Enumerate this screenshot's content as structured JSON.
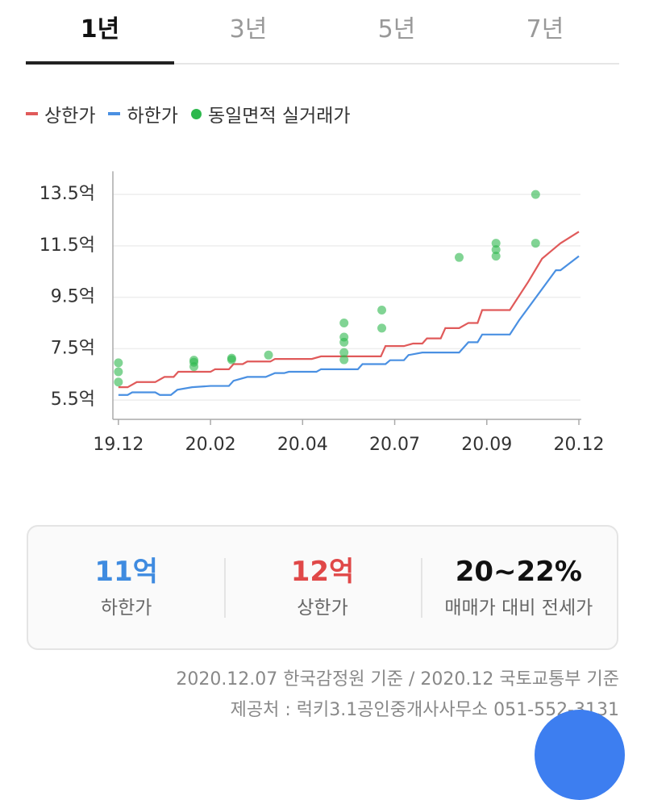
{
  "tabs": {
    "items": [
      "1년",
      "3년",
      "5년",
      "7년"
    ],
    "active": 0
  },
  "chart_data": {
    "type": "line",
    "ylim": [
      4.75,
      14.4
    ],
    "yticks": [
      {
        "value": 5.5,
        "label": "5.5억"
      },
      {
        "value": 7.5,
        "label": "7.5억"
      },
      {
        "value": 9.5,
        "label": "9.5억"
      },
      {
        "value": 11.5,
        "label": "11.5억"
      },
      {
        "value": 13.5,
        "label": "13.5억"
      }
    ],
    "xlim": [
      -0.6,
      50
    ],
    "xticks": [
      {
        "value": 0,
        "label": "19.12"
      },
      {
        "value": 10,
        "label": "20.02"
      },
      {
        "value": 20,
        "label": "20.04"
      },
      {
        "value": 30,
        "label": "20.07"
      },
      {
        "value": 40,
        "label": "20.09"
      },
      {
        "value": 50,
        "label": "20.12"
      }
    ],
    "grid": true,
    "series": [
      {
        "name": "상한가",
        "color": "#e05a5a",
        "x": [
          0,
          1,
          2,
          4,
          5,
          6,
          6.5,
          10,
          10.5,
          12,
          12.5,
          13.5,
          14,
          16.5,
          17,
          21,
          22,
          28.5,
          29,
          31,
          32,
          33,
          33.5,
          35,
          35.5,
          37,
          38,
          39,
          39.5,
          42.5,
          44.5,
          46,
          47,
          48,
          50
        ],
        "values": [
          6.0,
          6.0,
          6.2,
          6.2,
          6.4,
          6.4,
          6.6,
          6.6,
          6.7,
          6.7,
          6.9,
          6.9,
          7.0,
          7.0,
          7.1,
          7.1,
          7.2,
          7.2,
          7.6,
          7.6,
          7.7,
          7.7,
          7.9,
          7.9,
          8.3,
          8.3,
          8.5,
          8.5,
          9.0,
          9.0,
          10.1,
          11.0,
          11.3,
          11.6,
          12.05
        ]
      },
      {
        "name": "하한가",
        "color": "#4a90e2",
        "x": [
          0,
          1,
          1.5,
          4,
          4.5,
          5.7,
          6.4,
          8,
          10,
          12,
          12.5,
          14,
          16,
          17,
          18,
          18.5,
          21.5,
          22,
          26,
          26.5,
          29,
          29.5,
          31,
          31.5,
          33,
          37,
          38,
          39,
          39.5,
          42.5,
          43.5,
          47.5,
          48,
          50
        ],
        "values": [
          5.7,
          5.7,
          5.8,
          5.8,
          5.7,
          5.7,
          5.9,
          6.0,
          6.05,
          6.05,
          6.25,
          6.4,
          6.4,
          6.55,
          6.55,
          6.6,
          6.6,
          6.7,
          6.7,
          6.9,
          6.9,
          7.05,
          7.05,
          7.25,
          7.35,
          7.35,
          7.75,
          7.75,
          8.05,
          8.05,
          8.6,
          10.55,
          10.55,
          11.1
        ]
      }
    ],
    "points": {
      "name": "동일면적 실거래가",
      "color": "#2db84d",
      "x": [
        0,
        0,
        0,
        8.2,
        8.2,
        8.2,
        12.3,
        12.3,
        16.3,
        24.5,
        24.5,
        24.5,
        24.5,
        24.5,
        28.6,
        28.6,
        37,
        41,
        41,
        41,
        45.3,
        45.3
      ],
      "values": [
        6.95,
        6.6,
        6.2,
        7.05,
        6.97,
        6.8,
        7.13,
        7.07,
        7.25,
        8.5,
        7.95,
        7.75,
        7.35,
        7.07,
        9.0,
        8.3,
        11.05,
        11.6,
        11.35,
        11.1,
        13.5,
        11.6
      ]
    }
  },
  "card": {
    "items": [
      {
        "value": "11억",
        "label": "하한가",
        "color": "#3f8be0"
      },
      {
        "value": "12억",
        "label": "상한가",
        "color": "#e04848"
      },
      {
        "value": "20~22%",
        "label": "매매가 대비 전세가",
        "color": "#111111"
      }
    ]
  },
  "footer": [
    "2020.12.07 한국감정원 기준 / 2020.12 국토교통부 기준",
    "제공처 : 럭키3.1공인중개사사무소 051-552-3131"
  ]
}
